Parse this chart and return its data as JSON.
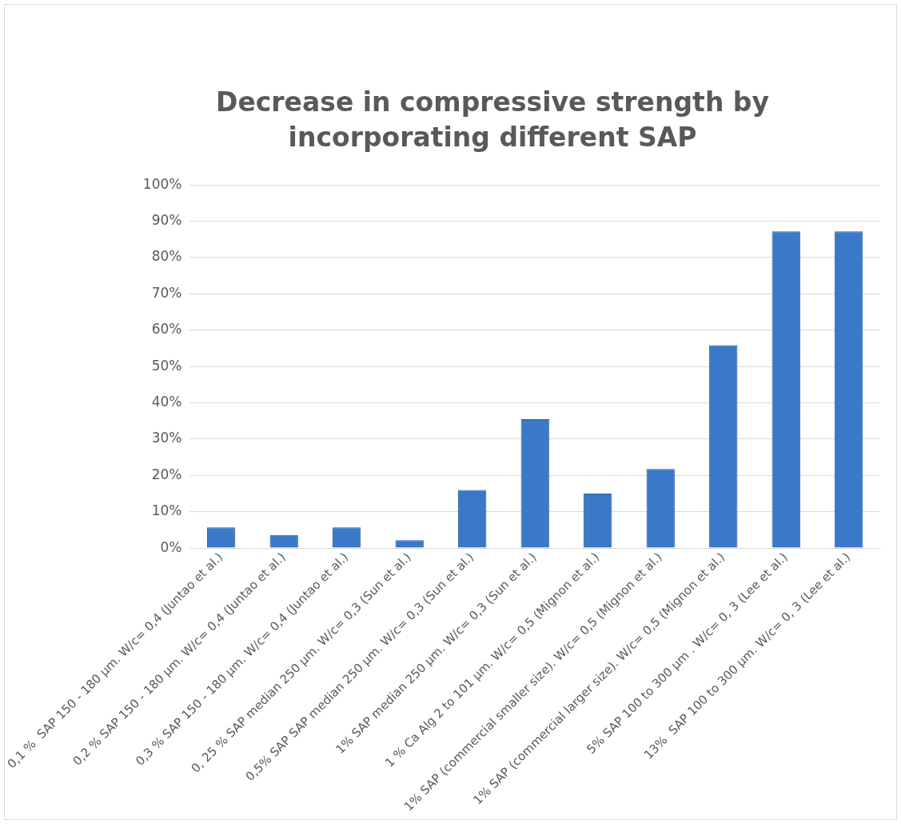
{
  "chart_data": {
    "type": "bar",
    "title": "Decrease in compressive strength by incorporating different SAP",
    "categories": [
      "0,1 %  SAP 150 - 180 µm. W/c= 0,4 (Juntao et al.)",
      "0,2 % SAP 150 - 180 µm. W/c= 0,4 (Juntao et al.)",
      "0,3 % SAP 150 - 180 µm. W/c= 0,4 (Juntao et al.)",
      "0, 25 % SAP median 250 µm. W/c= 0,3 (Sun et al.)",
      "0,5% SAP SAP median 250 µm. W/c= 0,3 (Sun et al.)",
      "1% SAP median 250 µm. W/c= 0,3 (Sun et al.)",
      "1 % Ca Alg 2 to 101 µm. W/c= 0,5 (Mignon et al.)",
      "1% SAP (commercial smaller size). W/c= 0,5 (Mignon et al.)",
      "1% SAP (commercial larger size). W/c= 0,5 (Mignon et al.)",
      "5% SAP 100 to 300 µm . W/c= 0, 3 (Lee et al.)",
      "13%  SAP 100 to 300 µm. W/c= 0, 3 (Lee et al.)"
    ],
    "values": [
      5.7,
      3.6,
      5.7,
      2.2,
      16,
      35.5,
      15,
      21.8,
      55.9,
      87.2,
      87.2
    ],
    "color": "#3a78c8",
    "ylim": [
      0,
      100
    ],
    "yticks": [
      {
        "value": 0,
        "label": "0%"
      },
      {
        "value": 10,
        "label": "10%"
      },
      {
        "value": 20,
        "label": "20%"
      },
      {
        "value": 30,
        "label": "30%"
      },
      {
        "value": 40,
        "label": "40%"
      },
      {
        "value": 50,
        "label": "50%"
      },
      {
        "value": 60,
        "label": "60%"
      },
      {
        "value": 70,
        "label": "70%"
      },
      {
        "value": 80,
        "label": "80%"
      },
      {
        "value": 90,
        "label": "90%"
      },
      {
        "value": 100,
        "label": "100%"
      }
    ],
    "grid": "y"
  }
}
